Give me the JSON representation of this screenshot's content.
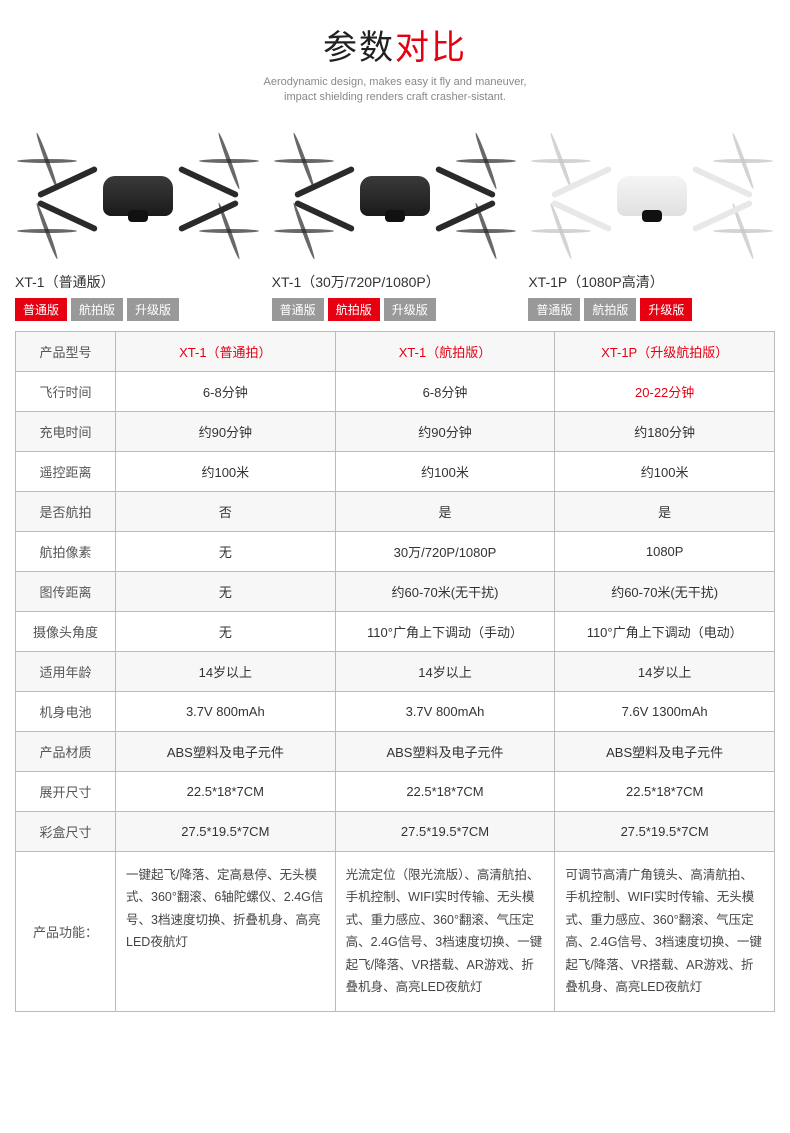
{
  "title": {
    "part1": "参数",
    "part2": "对比"
  },
  "subtitle_line1": "Aerodynamic design, makes easy it fly and maneuver,",
  "subtitle_line2": "impact shielding renders craft crasher-sistant.",
  "colors": {
    "accent": "#e60012",
    "tag_inactive": "#999999",
    "border": "#bbbbbb",
    "row_odd": "#f7f7f7",
    "row_even": "#ffffff"
  },
  "products": [
    {
      "name": "XT-1（普通版）",
      "variant": "dark",
      "tags": [
        {
          "label": "普通版",
          "active": true
        },
        {
          "label": "航拍版",
          "active": false
        },
        {
          "label": "升级版",
          "active": false
        }
      ]
    },
    {
      "name": "XT-1（30万/720P/1080P）",
      "variant": "dark",
      "tags": [
        {
          "label": "普通版",
          "active": false
        },
        {
          "label": "航拍版",
          "active": true
        },
        {
          "label": "升级版",
          "active": false
        }
      ]
    },
    {
      "name": "XT-1P（1080P高清）",
      "variant": "white",
      "tags": [
        {
          "label": "普通版",
          "active": false
        },
        {
          "label": "航拍版",
          "active": false
        },
        {
          "label": "升级版",
          "active": true
        }
      ]
    }
  ],
  "table": {
    "header": [
      "产品型号",
      "XT-1（普通拍）",
      "XT-1（航拍版）",
      "XT-1P（升级航拍版）"
    ],
    "rows": [
      {
        "label": "飞行时间",
        "cells": [
          "6-8分钟",
          "6-8分钟",
          "20-22分钟"
        ],
        "highlight_col": 2
      },
      {
        "label": "充电时间",
        "cells": [
          "约90分钟",
          "约90分钟",
          "约180分钟"
        ]
      },
      {
        "label": "遥控距离",
        "cells": [
          "约100米",
          "约100米",
          "约100米"
        ]
      },
      {
        "label": "是否航拍",
        "cells": [
          "否",
          "是",
          "是"
        ]
      },
      {
        "label": "航拍像素",
        "cells": [
          "无",
          "30万/720P/1080P",
          "1080P"
        ]
      },
      {
        "label": "图传距离",
        "cells": [
          "无",
          "约60-70米(无干扰)",
          "约60-70米(无干扰)"
        ]
      },
      {
        "label": "摄像头角度",
        "cells": [
          "无",
          "110°广角上下调动（手动）",
          "110°广角上下调动（电动）"
        ]
      },
      {
        "label": "适用年龄",
        "cells": [
          "14岁以上",
          "14岁以上",
          "14岁以上"
        ]
      },
      {
        "label": "机身电池",
        "cells": [
          "3.7V 800mAh",
          "3.7V 800mAh",
          "7.6V 1300mAh"
        ]
      },
      {
        "label": "产品材质",
        "cells": [
          "ABS塑料及电子元件",
          "ABS塑料及电子元件",
          "ABS塑料及电子元件"
        ]
      },
      {
        "label": "展开尺寸",
        "cells": [
          "22.5*18*7CM",
          "22.5*18*7CM",
          "22.5*18*7CM"
        ]
      },
      {
        "label": "彩盒尺寸",
        "cells": [
          "27.5*19.5*7CM",
          "27.5*19.5*7CM",
          "27.5*19.5*7CM"
        ]
      }
    ],
    "features_label": "产品功能：",
    "features": [
      "一键起飞/降落、定高悬停、无头模式、360°翻滚、6轴陀螺仪、2.4G信号、3档速度切换、折叠机身、高亮LED夜航灯",
      "光流定位（限光流版）、高清航拍、手机控制、WIFI实时传输、无头模式、重力感应、360°翻滚、气压定高、2.4G信号、3档速度切换、一键起飞/降落、VR搭载、AR游戏、折叠机身、高亮LED夜航灯",
      "可调节高清广角镜头、高清航拍、手机控制、WIFI实时传输、无头模式、重力感应、360°翻滚、气压定高、2.4G信号、3档速度切换、一键起飞/降落、VR搭载、AR游戏、折叠机身、高亮LED夜航灯"
    ]
  }
}
